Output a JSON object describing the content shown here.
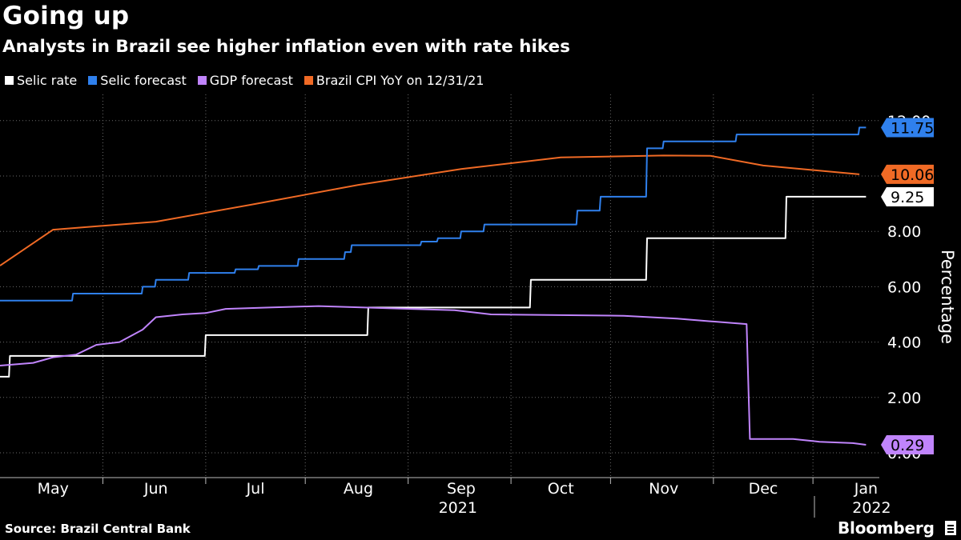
{
  "header": {
    "title": "Going up",
    "subtitle": "Analysts in Brazil see higher inflation even with rate hikes"
  },
  "footer": {
    "source": "Source: Brazil Central Bank",
    "brand": "Bloomberg"
  },
  "chart_data": {
    "type": "line",
    "title": "Going up",
    "subtitle": "Analysts in Brazil see higher inflation even with rate hikes",
    "ylabel": "Percentage",
    "xlabel": "",
    "ylim": [
      0,
      12
    ],
    "yticks": [
      0,
      2,
      4,
      6,
      8,
      10,
      12
    ],
    "ytick_labels": [
      "0.00",
      "2.00",
      "4.00",
      "6.00",
      "8.00",
      "10.00",
      "12.00"
    ],
    "xlim": [
      "2021-04-15",
      "2022-01-05"
    ],
    "xticks": [
      "2021-05-01",
      "2021-06-01",
      "2021-07-01",
      "2021-08-01",
      "2021-09-01",
      "2021-10-01",
      "2021-11-01",
      "2021-12-01",
      "2022-01-01"
    ],
    "xtick_labels": [
      "May",
      "Jun",
      "Jul",
      "Aug",
      "Sep",
      "Oct",
      "Nov",
      "Dec",
      "Jan"
    ],
    "year_labels": [
      {
        "label": "2021",
        "date": "2021-08-31"
      },
      {
        "label": "2022",
        "date": "2022-01-01"
      }
    ],
    "grid": true,
    "legend_position": "top-left",
    "series": [
      {
        "name": "Selic rate",
        "color": "#ffffff",
        "step": true,
        "end_label": "9.25",
        "points": [
          [
            "2021-04-15",
            2.75
          ],
          [
            "2021-04-18",
            3.5
          ],
          [
            "2021-06-16",
            4.25
          ],
          [
            "2021-08-04",
            5.25
          ],
          [
            "2021-09-22",
            6.25
          ],
          [
            "2021-10-27",
            7.75
          ],
          [
            "2021-12-08",
            9.25
          ],
          [
            "2022-01-01",
            9.25
          ]
        ]
      },
      {
        "name": "Selic forecast",
        "color": "#2f80ed",
        "step": true,
        "end_label": "11.75",
        "points": [
          [
            "2021-04-15",
            5.5
          ],
          [
            "2021-05-07",
            5.75
          ],
          [
            "2021-05-28",
            6.0
          ],
          [
            "2021-06-01",
            6.25
          ],
          [
            "2021-06-11",
            6.5
          ],
          [
            "2021-06-25",
            6.63
          ],
          [
            "2021-07-02",
            6.75
          ],
          [
            "2021-07-14",
            7.0
          ],
          [
            "2021-07-28",
            7.25
          ],
          [
            "2021-07-30",
            7.5
          ],
          [
            "2021-08-20",
            7.63
          ],
          [
            "2021-08-25",
            7.75
          ],
          [
            "2021-09-01",
            8.0
          ],
          [
            "2021-09-08",
            8.25
          ],
          [
            "2021-10-06",
            8.75
          ],
          [
            "2021-10-13",
            9.25
          ],
          [
            "2021-10-27",
            11.0
          ],
          [
            "2021-11-01",
            11.25
          ],
          [
            "2021-11-23",
            11.5
          ],
          [
            "2021-12-30",
            11.75
          ],
          [
            "2022-01-01",
            11.75
          ]
        ]
      },
      {
        "name": "GDP forecast",
        "color": "#c084fc",
        "step": false,
        "end_label": "0.29",
        "points": [
          [
            "2021-04-15",
            3.15
          ],
          [
            "2021-04-25",
            3.25
          ],
          [
            "2021-05-01",
            3.45
          ],
          [
            "2021-05-08",
            3.55
          ],
          [
            "2021-05-14",
            3.9
          ],
          [
            "2021-05-21",
            4.0
          ],
          [
            "2021-05-28",
            4.45
          ],
          [
            "2021-06-01",
            4.9
          ],
          [
            "2021-06-09",
            5.0
          ],
          [
            "2021-06-16",
            5.05
          ],
          [
            "2021-06-22",
            5.2
          ],
          [
            "2021-07-05",
            5.25
          ],
          [
            "2021-07-20",
            5.3
          ],
          [
            "2021-08-30",
            5.15
          ],
          [
            "2021-09-10",
            5.0
          ],
          [
            "2021-10-20",
            4.95
          ],
          [
            "2021-11-05",
            4.85
          ],
          [
            "2021-11-15",
            4.75
          ],
          [
            "2021-11-26",
            4.65
          ],
          [
            "2021-11-27",
            0.5
          ],
          [
            "2021-12-10",
            0.5
          ],
          [
            "2021-12-18",
            0.4
          ],
          [
            "2021-12-28",
            0.35
          ],
          [
            "2022-01-01",
            0.29
          ]
        ]
      },
      {
        "name": "Brazil CPI YoY on 12/31/21",
        "color": "#f06a25",
        "step": false,
        "end_label": "10.06",
        "points": [
          [
            "2021-04-15",
            6.76
          ],
          [
            "2021-05-01",
            8.06
          ],
          [
            "2021-06-01",
            8.35
          ],
          [
            "2021-07-01",
            8.99
          ],
          [
            "2021-08-01",
            9.68
          ],
          [
            "2021-09-01",
            10.25
          ],
          [
            "2021-10-01",
            10.67
          ],
          [
            "2021-11-01",
            10.74
          ],
          [
            "2021-11-15",
            10.73
          ],
          [
            "2021-12-01",
            10.38
          ],
          [
            "2021-12-30",
            10.06
          ]
        ]
      }
    ]
  }
}
